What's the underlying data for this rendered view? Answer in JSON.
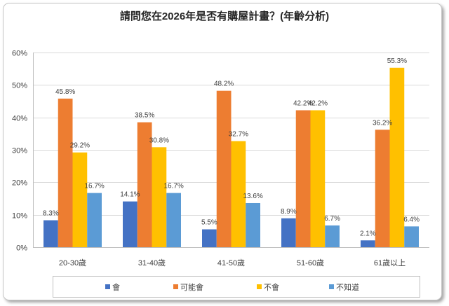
{
  "chart_data": {
    "type": "bar",
    "title": "請問您在2026年是否有購屋計畫？(年齡分析)",
    "xlabel": "",
    "ylabel": "",
    "categories": [
      "20-30歲",
      "31-40歲",
      "41-50歲",
      "51-60歲",
      "61歲以上"
    ],
    "ylim": [
      0,
      60
    ],
    "yticks": [
      0,
      10,
      20,
      30,
      40,
      50,
      60
    ],
    "ytick_labels": [
      "0%",
      "10%",
      "20%",
      "30%",
      "40%",
      "50%",
      "60%"
    ],
    "grid": true,
    "legend": "bottom",
    "series": [
      {
        "name": "會",
        "color": "#4472C4",
        "values": [
          8.3,
          14.1,
          5.5,
          8.9,
          2.1
        ],
        "labels": [
          "8.3%",
          "14.1%",
          "5.5%",
          "8.9%",
          "2.1%"
        ]
      },
      {
        "name": "可能會",
        "color": "#ED7D31",
        "values": [
          45.8,
          38.5,
          48.2,
          42.2,
          36.2
        ],
        "labels": [
          "45.8%",
          "38.5%",
          "48.2%",
          "42.2%",
          "36.2%"
        ]
      },
      {
        "name": "不會",
        "color": "#FFC000",
        "values": [
          29.2,
          30.8,
          32.7,
          42.2,
          55.3
        ],
        "labels": [
          "29.2%",
          "30.8%",
          "32.7%",
          "42.2%",
          "55.3%"
        ]
      },
      {
        "name": "不知道",
        "color": "#5B9BD5",
        "values": [
          16.7,
          16.7,
          13.6,
          6.7,
          6.4
        ],
        "labels": [
          "16.7%",
          "16.7%",
          "13.6%",
          "6.7%",
          "6.4%"
        ]
      }
    ]
  }
}
